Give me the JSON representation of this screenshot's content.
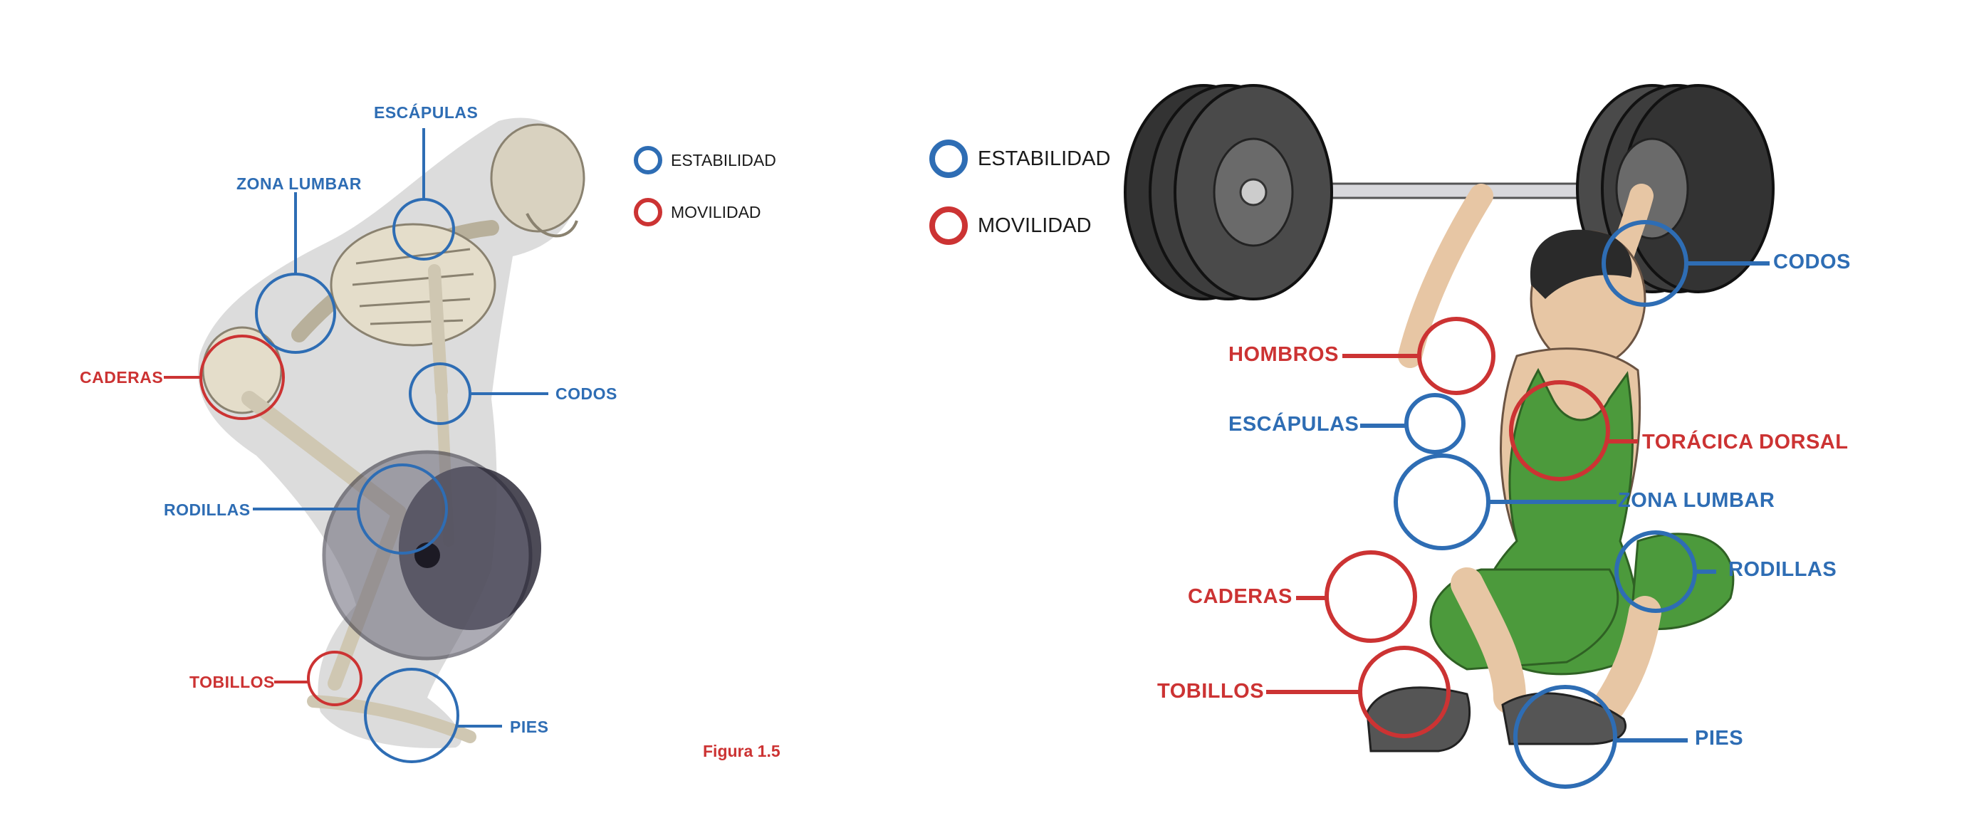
{
  "left": {
    "legend": {
      "stability": "ESTABILIDAD",
      "mobility": "MOVILIDAD"
    },
    "labels": {
      "escapulas": "ESCÁPULAS",
      "zona_lumbar": "ZONA LUMBAR",
      "caderas": "CADERAS",
      "codos": "CODOS",
      "rodillas": "RODILLAS",
      "tobillos": "TOBILLOS",
      "pies": "PIES"
    },
    "caption": "Figura 1.5"
  },
  "right": {
    "legend": {
      "stability": "ESTABILIDAD",
      "mobility": "MOVILIDAD"
    },
    "labels": {
      "codos": "CODOS",
      "hombros": "HOMBROS",
      "escapulas": "ESCÁPULAS",
      "toracica_dorsal": "TORÁCICA DORSAL",
      "zona_lumbar": "ZONA LUMBAR",
      "rodillas": "RODILLAS",
      "caderas": "CADERAS",
      "tobillos": "TOBILLOS",
      "pies": "PIES"
    }
  },
  "colors": {
    "stability": "#2e6db4",
    "mobility": "#cc3333",
    "singlet": "#4c9a3c",
    "plate": "#3a3a3a"
  },
  "icons": [
    "skeleton-illustration",
    "barbell-icon",
    "weightlifter-illustration",
    "legend-ring-icon"
  ]
}
